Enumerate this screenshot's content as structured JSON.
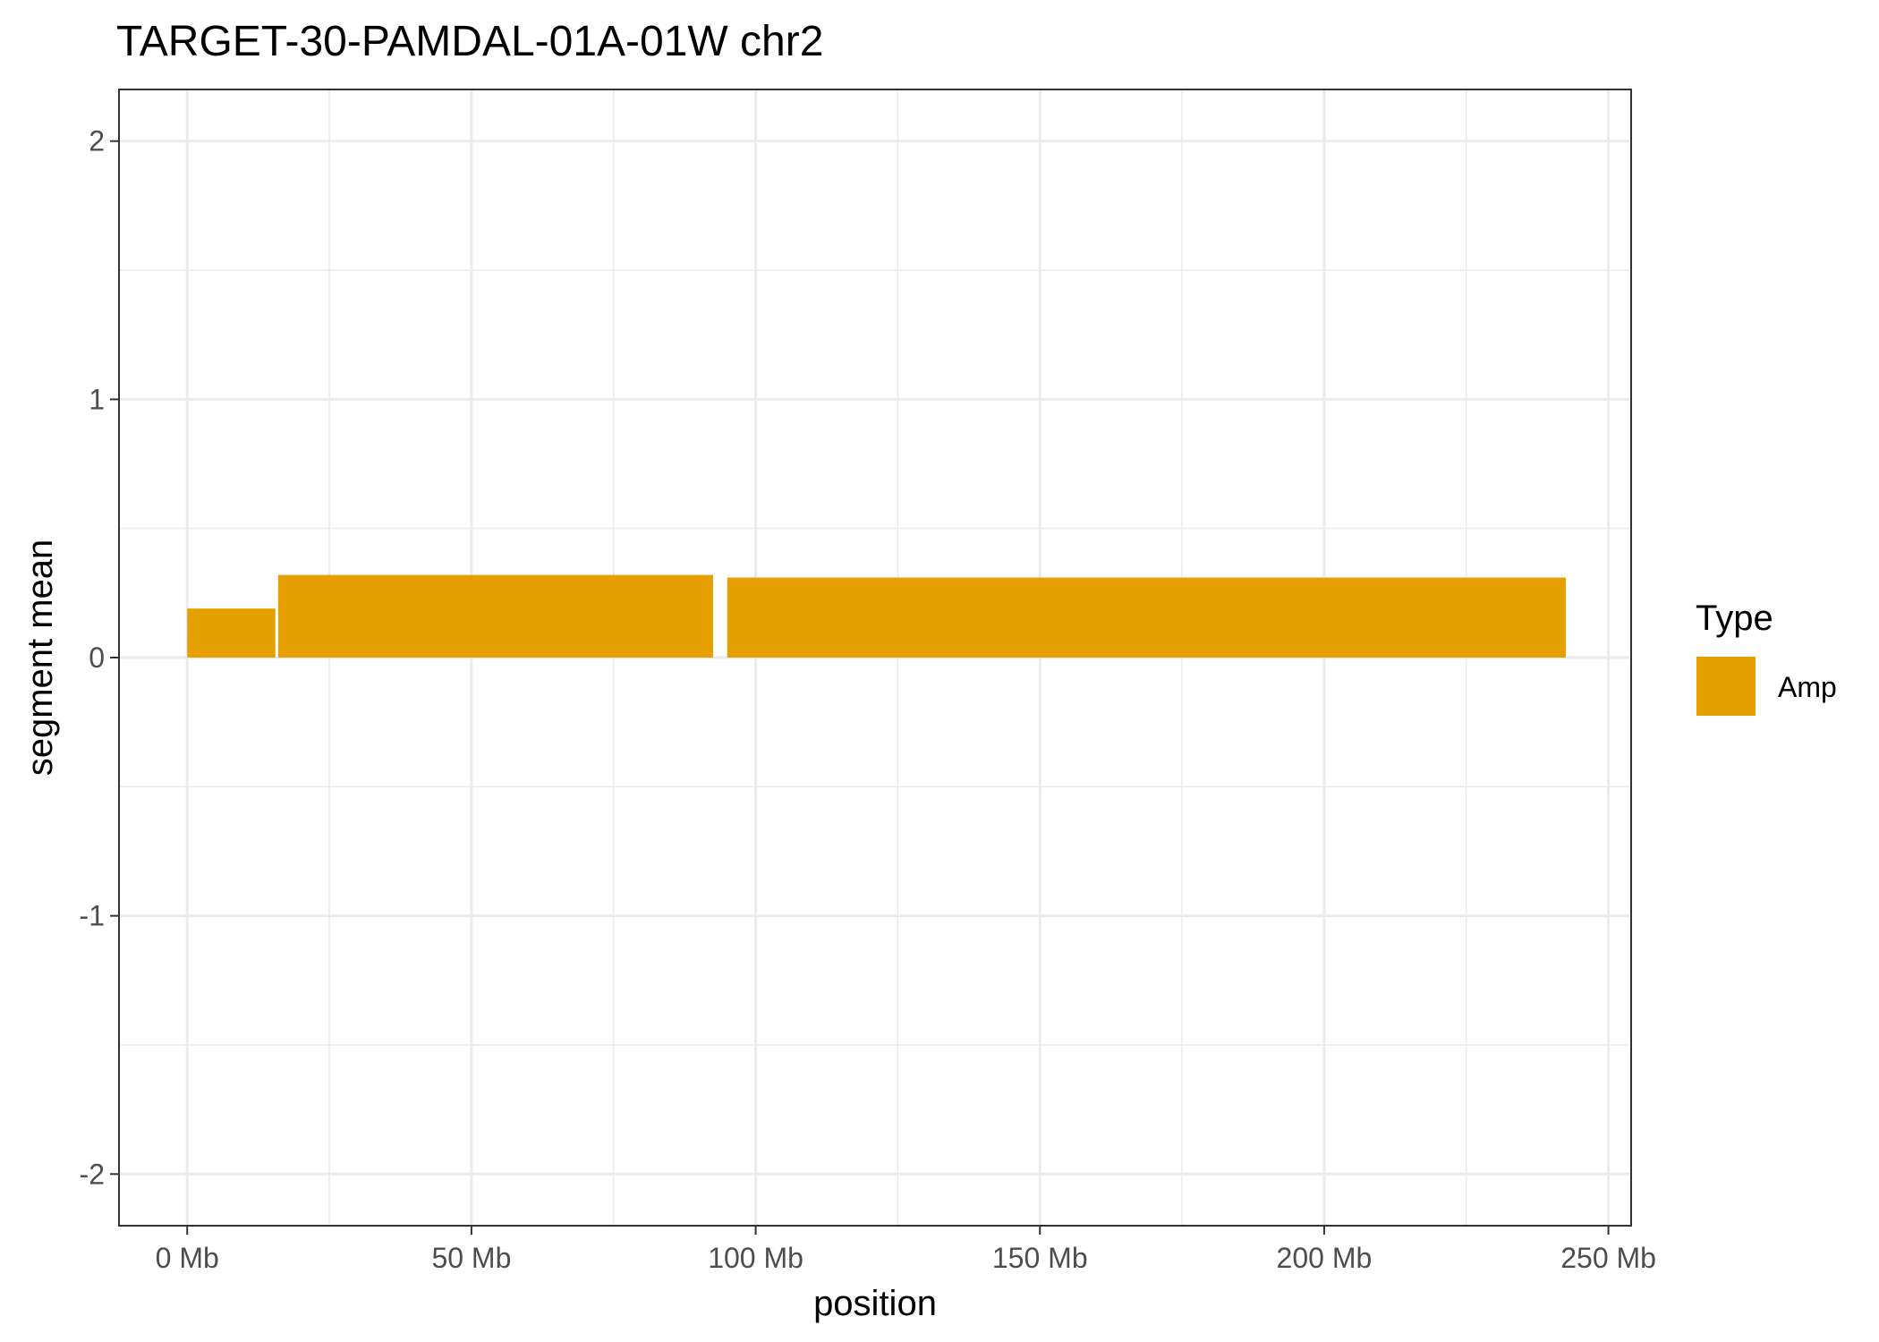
{
  "chart_data": {
    "type": "bar",
    "title": "TARGET-30-PAMDAL-01A-01W chr2",
    "xlabel": "position",
    "ylabel": "segment mean",
    "xlim": [
      -12,
      254
    ],
    "ylim": [
      -2.2,
      2.2
    ],
    "x_ticks": [
      {
        "value": 0,
        "label": "0 Mb"
      },
      {
        "value": 50,
        "label": "50 Mb"
      },
      {
        "value": 100,
        "label": "100 Mb"
      },
      {
        "value": 150,
        "label": "150 Mb"
      },
      {
        "value": 200,
        "label": "200 Mb"
      },
      {
        "value": 250,
        "label": "250 Mb"
      }
    ],
    "y_ticks": [
      {
        "value": 2,
        "label": "2"
      },
      {
        "value": 1,
        "label": "1"
      },
      {
        "value": 0,
        "label": "0"
      },
      {
        "value": -1,
        "label": "-1"
      },
      {
        "value": -2,
        "label": "-2"
      }
    ],
    "x_minor_gridlines": [
      25,
      75,
      125,
      175,
      225
    ],
    "y_minor_gridlines": [
      1.5,
      0.5,
      -0.5,
      -1.5
    ],
    "grid": true,
    "legend": {
      "title": "Type",
      "placement": "right",
      "entries": [
        {
          "label": "Amp",
          "color": "#E69F00"
        }
      ]
    },
    "series": [
      {
        "name": "Amp",
        "color": "#E69F00",
        "segments": [
          {
            "start": 0,
            "end": 15.5,
            "value": 0.19
          },
          {
            "start": 16,
            "end": 92.5,
            "value": 0.32
          },
          {
            "start": 95,
            "end": 242.5,
            "value": 0.31
          }
        ]
      }
    ]
  }
}
